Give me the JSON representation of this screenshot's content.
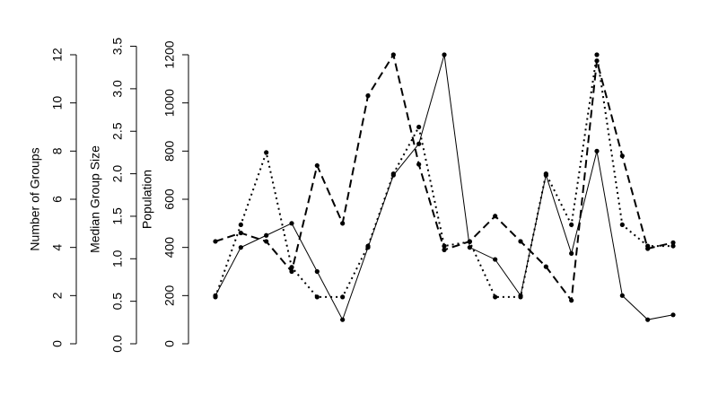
{
  "chart_data": {
    "type": "line",
    "axes": [
      {
        "label": "Number of Groups",
        "ylim": [
          0,
          12
        ],
        "yticks": [
          0,
          2,
          4,
          6,
          8,
          10,
          12
        ]
      },
      {
        "label": "Median Group Size",
        "ylim": [
          0,
          3.5
        ],
        "yticks": [
          {
            "value": 0,
            "label": "0.0"
          },
          0.5,
          {
            "value": 1,
            "label": "1.0"
          },
          1.5,
          {
            "value": 2,
            "label": "2.0"
          },
          2.5,
          {
            "value": 3,
            "label": "3.0"
          },
          3.5
        ]
      },
      {
        "label": "Population",
        "ylim": [
          0,
          1200
        ],
        "yticks": [
          0,
          200,
          400,
          600,
          800,
          1000,
          1200
        ]
      }
    ],
    "x": [
      1,
      2,
      3,
      4,
      5,
      6,
      7,
      8,
      9,
      10,
      11,
      12,
      13,
      14,
      15,
      16,
      17,
      18,
      19
    ],
    "xlim": [
      1,
      19
    ],
    "series": [
      {
        "axis": 2,
        "color": "#000000",
        "dash": "solid",
        "values": [
          200,
          400,
          450,
          500,
          300,
          100,
          400,
          700,
          830,
          1200,
          400,
          350,
          200,
          700,
          375,
          800,
          200,
          100,
          120
        ]
      },
      {
        "axis": 0,
        "color": "#000000",
        "dash": "dashed",
        "values": [
          4.25,
          4.6,
          4.25,
          3,
          7.4,
          5,
          10.3,
          12,
          7.45,
          3.9,
          4.25,
          5.3,
          4.25,
          3.2,
          1.8,
          11.75,
          7.8,
          3.95,
          4.2
        ]
      },
      {
        "axis": 1,
        "color": "#000000",
        "dash": "dotted",
        "values": [
          0.55,
          1.4,
          2.25,
          0.9,
          0.55,
          0.55,
          1.15,
          2.0,
          2.55,
          1.15,
          1.2,
          0.55,
          0.55,
          2.0,
          1.4,
          3.4,
          1.4,
          1.15,
          1.15
        ]
      }
    ]
  }
}
